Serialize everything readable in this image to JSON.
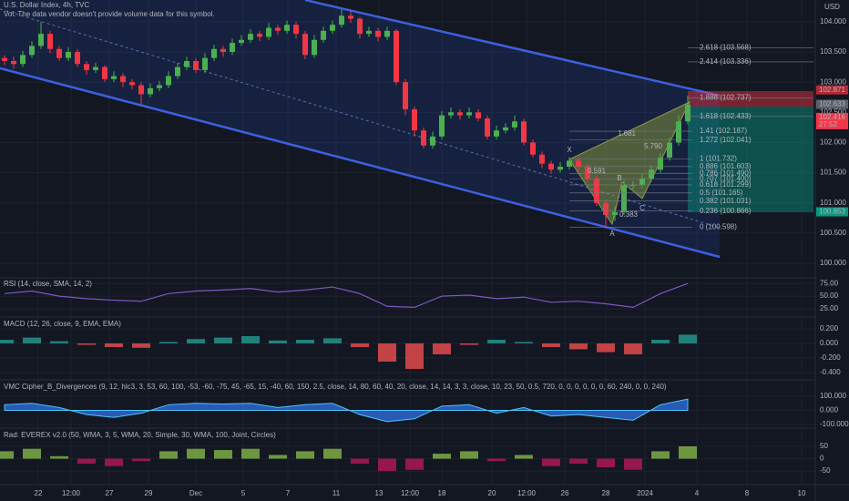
{
  "chart_data": [
    {
      "type": "candlestick",
      "title": "U.S. Dollar Index, 4h, TVC",
      "subtitle": "Vol: The data vendor doesn't provide volume data for this symbol.",
      "currency": "USD",
      "x_labels": [
        "22",
        "12:00",
        "27",
        "29",
        "Dec",
        "5",
        "7",
        "11",
        "13",
        "12:00",
        "18",
        "20",
        "12:00",
        "26",
        "28",
        "2024",
        "4",
        "8",
        "10"
      ],
      "open": [
        103.4,
        103.35,
        103.3,
        103.45,
        103.6,
        103.8,
        103.55,
        103.4,
        103.5,
        103.3,
        103.2,
        103.25,
        103.05,
        103.1,
        103.0,
        102.95,
        102.8,
        102.9,
        102.95,
        103.1,
        103.25,
        103.35,
        103.2,
        103.4,
        103.55,
        103.5,
        103.65,
        103.7,
        103.8,
        103.75,
        103.9,
        103.85,
        103.95,
        103.8,
        103.45,
        103.7,
        103.85,
        103.95,
        104.1,
        104.05,
        103.8,
        103.85,
        103.75,
        103.85,
        103.0,
        102.55,
        102.2,
        101.95,
        102.1,
        102.45,
        102.5,
        102.45,
        102.5,
        102.4,
        102.1,
        102.2,
        102.25,
        102.35,
        102.0,
        101.8,
        101.65,
        101.55,
        101.6,
        101.7,
        101.6,
        101.4,
        101.0,
        100.8,
        100.85,
        101.3,
        101.3,
        101.4,
        101.55,
        101.75,
        102.0,
        102.35
      ],
      "high": [
        103.45,
        103.42,
        103.52,
        103.68,
        104.0,
        103.85,
        103.6,
        103.58,
        103.55,
        103.35,
        103.32,
        103.28,
        103.18,
        103.15,
        103.05,
        103.0,
        102.98,
        103.02,
        103.18,
        103.32,
        103.42,
        103.4,
        103.48,
        103.62,
        103.6,
        103.72,
        103.78,
        103.88,
        103.85,
        103.98,
        103.95,
        104.02,
        104.0,
        103.85,
        103.78,
        103.92,
        104.02,
        104.2,
        104.18,
        104.08,
        103.92,
        103.9,
        103.92,
        103.88,
        103.05,
        102.6,
        102.25,
        102.18,
        102.52,
        102.58,
        102.55,
        102.58,
        102.55,
        102.45,
        102.28,
        102.32,
        102.45,
        102.4,
        102.05,
        101.85,
        101.7,
        101.68,
        101.76,
        101.75,
        101.65,
        101.45,
        101.05,
        100.95,
        101.38,
        101.36,
        101.48,
        101.62,
        101.82,
        102.08,
        102.45,
        102.78
      ],
      "low": [
        103.28,
        103.22,
        103.25,
        103.4,
        103.55,
        103.48,
        103.35,
        103.35,
        103.25,
        103.12,
        103.15,
        103.0,
        103.0,
        102.92,
        102.88,
        102.63,
        102.75,
        102.85,
        102.9,
        103.05,
        103.2,
        103.15,
        103.15,
        103.35,
        103.42,
        103.45,
        103.6,
        103.65,
        103.68,
        103.7,
        103.78,
        103.8,
        103.72,
        103.38,
        103.4,
        103.65,
        103.8,
        103.9,
        103.98,
        103.72,
        103.75,
        103.68,
        103.7,
        102.95,
        102.45,
        102.1,
        101.9,
        101.9,
        102.05,
        102.4,
        102.38,
        102.4,
        102.35,
        102.05,
        102.05,
        102.15,
        102.2,
        101.95,
        101.75,
        101.58,
        101.48,
        101.5,
        101.55,
        101.52,
        101.35,
        100.95,
        100.6,
        100.7,
        100.8,
        101.22,
        101.25,
        101.35,
        101.5,
        101.7,
        101.95,
        102.3
      ],
      "close": [
        103.35,
        103.3,
        103.45,
        103.6,
        103.8,
        103.55,
        103.4,
        103.5,
        103.3,
        103.2,
        103.25,
        103.05,
        103.1,
        103.0,
        102.95,
        102.8,
        102.9,
        102.95,
        103.1,
        103.25,
        103.35,
        103.2,
        103.4,
        103.55,
        103.5,
        103.65,
        103.7,
        103.8,
        103.75,
        103.9,
        103.85,
        103.95,
        103.8,
        103.45,
        103.7,
        103.85,
        103.95,
        104.1,
        104.05,
        103.8,
        103.85,
        103.75,
        103.85,
        103.0,
        102.55,
        102.2,
        101.95,
        102.1,
        102.45,
        102.5,
        102.45,
        102.5,
        102.4,
        102.1,
        102.2,
        102.25,
        102.35,
        102.0,
        101.8,
        101.65,
        101.55,
        101.6,
        101.7,
        101.6,
        101.4,
        101.0,
        100.8,
        100.85,
        101.3,
        101.3,
        101.4,
        101.55,
        101.75,
        102.0,
        102.35,
        102.63
      ],
      "up_color": "#4caf50",
      "down_color": "#f23645",
      "ylim": [
        99.76,
        104.36
      ],
      "yticks": [
        {
          "value": 100,
          "label": "100.000"
        },
        {
          "value": 100.5,
          "label": "100.500"
        },
        {
          "value": 101,
          "label": "101.000"
        },
        {
          "value": 101.5,
          "label": "101.500"
        },
        {
          "value": 102,
          "label": "102.000"
        },
        {
          "value": 102.5,
          "label": "102.500"
        },
        {
          "value": 103,
          "label": "103.000"
        },
        {
          "value": 103.5,
          "label": "103.500"
        },
        {
          "value": 104,
          "label": "104.000"
        }
      ],
      "grid": true,
      "fib_levels": [
        {
          "value": 103.568,
          "label": "2.618 (103.568)"
        },
        {
          "value": 103.336,
          "label": "2.414 (103.336)"
        },
        {
          "value": 102.737,
          "label": "1.886 (102.737)"
        },
        {
          "value": 102.433,
          "label": "1.618 (102.433)"
        },
        {
          "value": 102.187,
          "label": "1.41 (102.187)"
        },
        {
          "value": 102.041,
          "label": "1.272 (102.041)"
        },
        {
          "value": 101.732,
          "label": "1 (101.732)"
        },
        {
          "value": 101.603,
          "label": "0.886 (101.603)"
        },
        {
          "value": 101.49,
          "label": "0.786 (101.490)"
        },
        {
          "value": 101.4,
          "label": "0.707 (101.400)"
        },
        {
          "value": 101.299,
          "label": "0.618 (101.299)"
        },
        {
          "value": 101.165,
          "label": "0.5 (101.165)"
        },
        {
          "value": 101.031,
          "label": "0.382 (101.031)"
        },
        {
          "value": 100.866,
          "label": "0.236 (100.866)"
        },
        {
          "value": 100.598,
          "label": "0 (100.598)"
        }
      ],
      "pattern_labels": [
        "X",
        "A",
        "B",
        "C",
        "0.591",
        "0.383",
        "1.681",
        "5.790"
      ],
      "price_tags": [
        {
          "value": 102.871,
          "color": "#b22833"
        },
        {
          "value": 102.633,
          "color": "#5d606b"
        },
        {
          "value": 102.416,
          "color": "#f23645",
          "countdown": "27:52"
        },
        {
          "value": 100.853,
          "color": "#089981"
        }
      ]
    },
    {
      "type": "line",
      "title": "RSI (14, close, SMA, 14, 2)",
      "color": "#7e57c2",
      "values": [
        55,
        60,
        50,
        45,
        42,
        40,
        55,
        60,
        62,
        65,
        58,
        62,
        68,
        55,
        30,
        28,
        50,
        52,
        45,
        48,
        38,
        40,
        35,
        28,
        55,
        75
      ],
      "ylim": [
        9,
        86
      ],
      "yticks": [
        {
          "value": 25,
          "label": "25.00"
        },
        {
          "value": 50,
          "label": "50.00"
        },
        {
          "value": 75,
          "label": "75.00"
        }
      ]
    },
    {
      "type": "bar",
      "title": "MACD (12, 26, close, 9, EMA, EMA)",
      "color_positive": "#26a69a",
      "color_negative": "#ff5252",
      "values": [
        0.05,
        0.08,
        0.03,
        -0.02,
        -0.05,
        -0.06,
        0.02,
        0.06,
        0.08,
        0.1,
        0.04,
        0.05,
        0.07,
        -0.05,
        -0.25,
        -0.35,
        -0.15,
        -0.02,
        0.05,
        0.02,
        -0.05,
        -0.08,
        -0.12,
        -0.15,
        0.05,
        0.12
      ],
      "ylim": [
        -0.5,
        0.35
      ],
      "yticks": [
        {
          "value": -0.4,
          "label": "-0.400"
        },
        {
          "value": -0.2,
          "label": "-0.200"
        },
        {
          "value": 0,
          "label": "0.000"
        },
        {
          "value": 0.2,
          "label": "0.200"
        }
      ]
    },
    {
      "type": "area",
      "title": "VMC Cipher_B_Divergences (9, 12, hlc3, 3, 53, 60, 100, -53, -60, -75, 45, -65, 15, -40, 60, 150, 2.5, close, 14, 80, 60, 40, 20, close, 14, 14, 3, 3, close, 10, 23, 50, 0.5, 720, 0, 0, 0, 0, 0, 0, 60, 240, 0, 0, 240)",
      "color": "#3179f5",
      "values": [
        40,
        50,
        20,
        -30,
        -50,
        -20,
        40,
        50,
        45,
        50,
        20,
        40,
        50,
        -30,
        -80,
        -60,
        30,
        40,
        -20,
        20,
        -40,
        -30,
        -50,
        -70,
        40,
        80
      ],
      "ylim": [
        -126,
        210
      ],
      "yticks": [
        {
          "value": -100,
          "label": "-100.000"
        },
        {
          "value": 0,
          "label": "0.000"
        },
        {
          "value": 100,
          "label": "100.000"
        }
      ]
    },
    {
      "type": "bar",
      "title": "Rad: EVEREX v2.0 (50, WMA, 3, 5, WMA, 20, Simple, 30, WMA, 100, Joint, Circles)",
      "color_positive": "#8bc34a",
      "color_negative": "#c2185b",
      "values": [
        30,
        40,
        10,
        -20,
        -30,
        -10,
        30,
        40,
        35,
        40,
        15,
        30,
        40,
        -20,
        -50,
        -45,
        20,
        30,
        -10,
        15,
        -30,
        -20,
        -35,
        -45,
        30,
        50
      ],
      "ylim": [
        -105,
        120
      ],
      "yticks": [
        -50,
        0,
        50
      ]
    }
  ]
}
